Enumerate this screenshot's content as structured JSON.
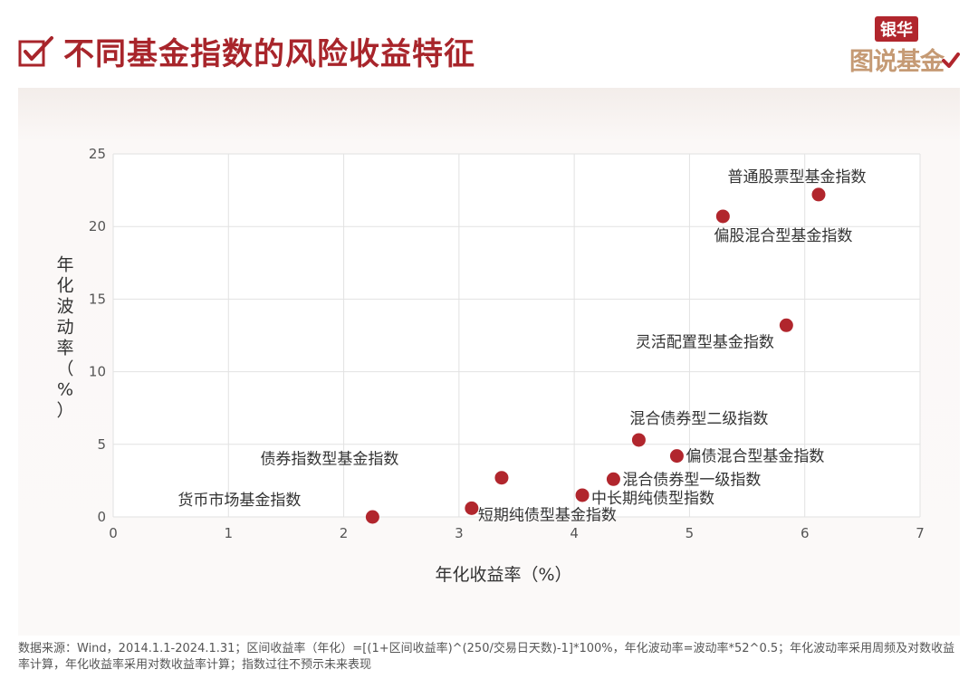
{
  "header": {
    "title": "不同基金指数的风险收益特征",
    "logo_top": "银华",
    "logo_bottom": "图说基金"
  },
  "chart_data": {
    "type": "scatter",
    "xlabel": "年化收益率（%）",
    "ylabel": "年化波动率（%）",
    "xlim": [
      0,
      7
    ],
    "ylim": [
      0,
      25
    ],
    "xticks": [
      0,
      1,
      2,
      3,
      4,
      5,
      6,
      7
    ],
    "yticks": [
      0,
      5,
      10,
      15,
      20,
      25
    ],
    "grid": true,
    "point_color": "#b1262d",
    "points": [
      {
        "label": "普通股票型基金指数",
        "x": 6.12,
        "y": 22.2
      },
      {
        "label": "偏股混合型基金指数",
        "x": 5.29,
        "y": 20.7
      },
      {
        "label": "灵活配置型基金指数",
        "x": 5.84,
        "y": 13.2
      },
      {
        "label": "混合债券型二级指数",
        "x": 4.56,
        "y": 5.3
      },
      {
        "label": "偏债混合型基金指数",
        "x": 4.89,
        "y": 4.2
      },
      {
        "label": "混合债券型一级指数",
        "x": 4.34,
        "y": 2.6
      },
      {
        "label": "债券指数型基金指数",
        "x": 3.37,
        "y": 2.7
      },
      {
        "label": "中长期纯债型指数",
        "x": 4.07,
        "y": 1.5
      },
      {
        "label": "短期纯债型基金指数",
        "x": 3.11,
        "y": 0.6
      },
      {
        "label": "货币市场基金指数",
        "x": 2.25,
        "y": 0.0
      }
    ]
  },
  "footnote": "数据来源：Wind，2014.1.1-2024.1.31；区间收益率（年化）=[(1+区间收益率)^(250/交易日天数)-1]*100%，年化波动率=波动率*52^0.5；年化波动率采用周频及对数收益率计算，年化收益率采用对数收益率计算；指数过往不预示未来表现"
}
